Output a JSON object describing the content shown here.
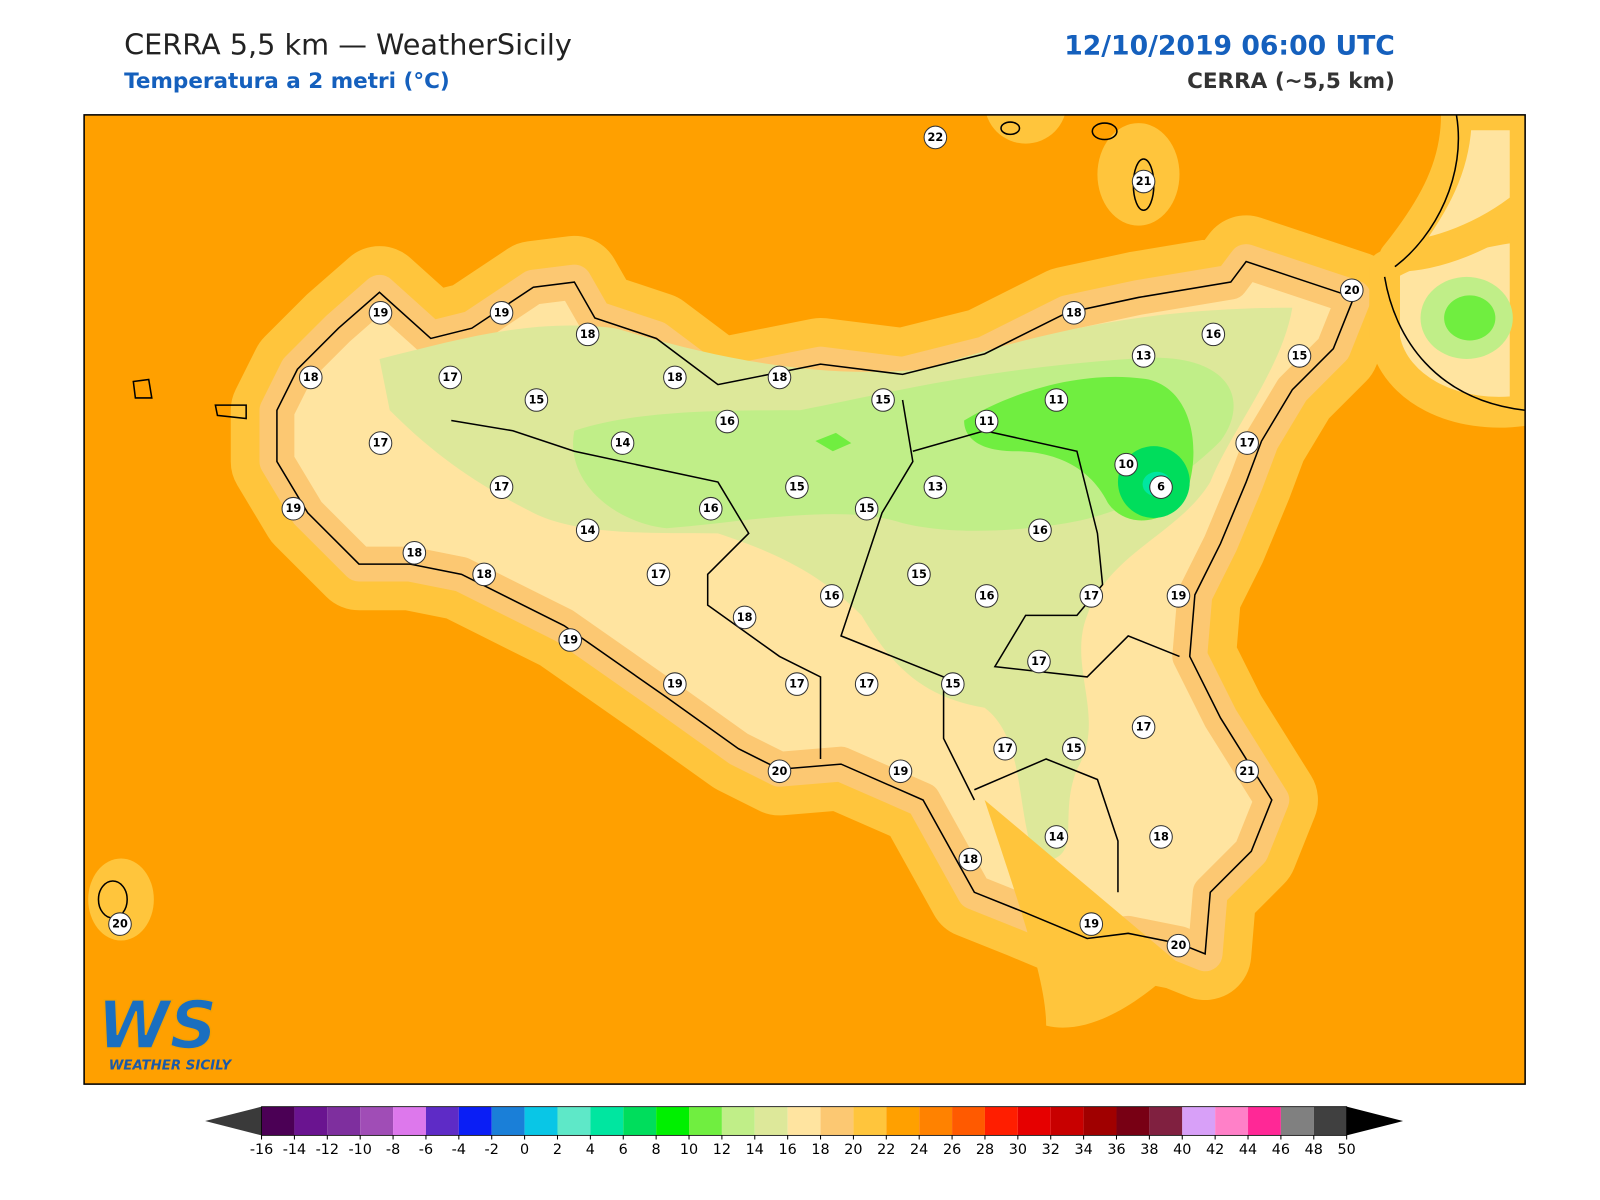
{
  "header": {
    "title": "CERRA 5,5 km — WeatherSicily",
    "subtitle": "Temperatura a 2 metri (°C)",
    "datetime": "12/10/2019 06:00 UTC",
    "model": "CERRA (~5,5 km)"
  },
  "stations": {
    "values": [
      22,
      21,
      19,
      19,
      18,
      20,
      18,
      16,
      13,
      15,
      18,
      17,
      18,
      18,
      15,
      15,
      11,
      16,
      11,
      17,
      14,
      17,
      10,
      6,
      17,
      15,
      13,
      16,
      15,
      19,
      14,
      16,
      18,
      18,
      17,
      15,
      16,
      16,
      17,
      19,
      18,
      19,
      17,
      19,
      17,
      17,
      15,
      17,
      17,
      15,
      20,
      19,
      21,
      14,
      18,
      18,
      19,
      20,
      20
    ]
  },
  "colorbar": {
    "ticks": [
      -16,
      -14,
      -12,
      -10,
      -8,
      -6,
      -4,
      -2,
      0,
      2,
      4,
      6,
      8,
      10,
      12,
      14,
      16,
      18,
      20,
      22,
      24,
      26,
      28,
      30,
      32,
      34,
      36,
      38,
      40,
      42,
      44,
      46,
      48,
      50
    ],
    "colors": [
      "#4b0055",
      "#6a1490",
      "#7e2f9e",
      "#a04db6",
      "#dd78ec",
      "#5e2bc6",
      "#0a1ef5",
      "#1a7fd8",
      "#09c6e6",
      "#5ee8c8",
      "#00e6a0",
      "#00dd5c",
      "#00f000",
      "#70ee40",
      "#c0ee88",
      "#dde89a",
      "#ffe4a0",
      "#fcc872",
      "#ffc53c",
      "#ffa000",
      "#ff8200",
      "#ff5a00",
      "#ff1e00",
      "#e60000",
      "#c80000",
      "#a00000",
      "#780014",
      "#802040",
      "#d8a0f8",
      "#ff80c8",
      "#ff2896",
      "#808080",
      "#404040"
    ],
    "extend_colors": [
      "#3a3a3a",
      "#000000"
    ]
  },
  "logo": {
    "mark": "WS",
    "text": "WEATHER SICILY"
  }
}
